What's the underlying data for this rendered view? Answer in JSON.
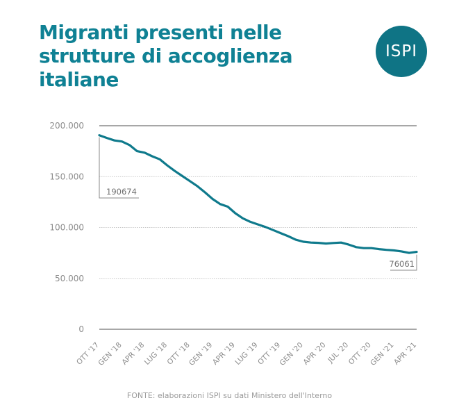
{
  "header": {
    "title": "Migranti presenti nelle strutture di accoglienza italiane",
    "logo_text": "ISPI"
  },
  "footer": {
    "source": "FONTE: elaborazioni ISPI su dati Ministero dell'Interno"
  },
  "colors": {
    "title": "#0f8194",
    "line": "#0f7a8c",
    "logo_bg": "#0f7485",
    "grid": "#b5b5b5",
    "axis": "#8a8a8a"
  },
  "chart_data": {
    "type": "line",
    "title": "Migranti presenti nelle strutture di accoglienza italiane",
    "xlabel": "",
    "ylabel": "",
    "ylim": [
      0,
      200000
    ],
    "yticks": [
      0,
      50000,
      100000,
      150000,
      200000
    ],
    "ytick_labels": [
      "0",
      "50.000",
      "100.000",
      "150.000",
      "200.000"
    ],
    "xticks": [
      "OTT '17",
      "GEN '18",
      "APR '18",
      "LUG '18",
      "OTT '18",
      "GEN '19",
      "APR '19",
      "LUG '19",
      "OTT '19",
      "GEN '20",
      "APR '20",
      "JUL '20",
      "OTT '20",
      "GEN '21",
      "APR '21"
    ],
    "grid": "horizontal dashed",
    "series": [
      {
        "x": [
          "2017-10",
          "2017-11",
          "2017-12",
          "2018-01",
          "2018-02",
          "2018-03",
          "2018-04",
          "2018-05",
          "2018-06",
          "2018-07",
          "2018-08",
          "2018-09",
          "2018-10",
          "2018-11",
          "2018-12",
          "2019-01",
          "2019-02",
          "2019-03",
          "2019-04",
          "2019-05",
          "2019-06",
          "2019-07",
          "2019-08",
          "2019-09",
          "2019-10",
          "2019-11",
          "2019-12",
          "2020-01",
          "2020-02",
          "2020-03",
          "2020-04",
          "2020-05",
          "2020-06",
          "2020-07",
          "2020-08",
          "2020-09",
          "2020-10",
          "2020-11",
          "2020-12",
          "2021-01",
          "2021-02",
          "2021-03",
          "2021-04"
        ],
        "values": [
          190674,
          188000,
          185500,
          184500,
          181000,
          175000,
          173500,
          170000,
          167000,
          161000,
          155500,
          150500,
          145500,
          140500,
          134500,
          128000,
          123000,
          120500,
          114000,
          109000,
          105500,
          103000,
          100500,
          97500,
          94500,
          91500,
          88000,
          86000,
          85200,
          84900,
          84200,
          84800,
          85200,
          83200,
          80700,
          79700,
          79700,
          78800,
          78000,
          77500,
          76500,
          75000,
          76061
        ]
      }
    ],
    "annotations": [
      {
        "label": "190674",
        "x": "2017-10",
        "value": 190674
      },
      {
        "label": "76061",
        "x": "2021-04",
        "value": 76061
      }
    ]
  }
}
